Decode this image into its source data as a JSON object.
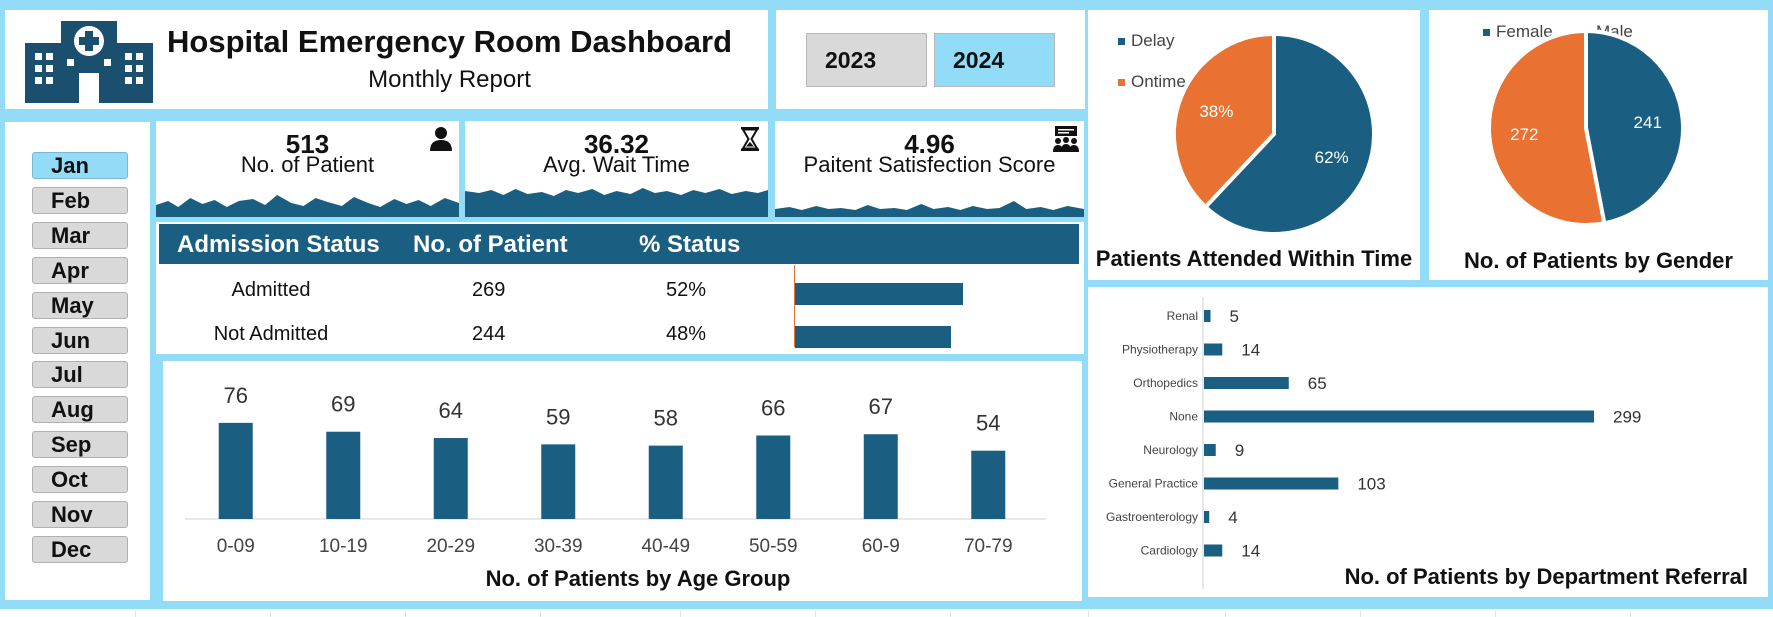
{
  "header": {
    "title": "Hospital Emergency Room Dashboard",
    "subtitle": "Monthly Report",
    "logo_icon": "hospital-icon"
  },
  "years": [
    {
      "label": "2023",
      "selected": false
    },
    {
      "label": "2024",
      "selected": true
    }
  ],
  "months": [
    {
      "label": "Jan",
      "selected": true
    },
    {
      "label": "Feb",
      "selected": false
    },
    {
      "label": "Mar",
      "selected": false
    },
    {
      "label": "Apr",
      "selected": false
    },
    {
      "label": "May",
      "selected": false
    },
    {
      "label": "Jun",
      "selected": false
    },
    {
      "label": "Jul",
      "selected": false
    },
    {
      "label": "Aug",
      "selected": false
    },
    {
      "label": "Sep",
      "selected": false
    },
    {
      "label": "Oct",
      "selected": false
    },
    {
      "label": "Nov",
      "selected": false
    },
    {
      "label": "Dec",
      "selected": false
    }
  ],
  "kpis": [
    {
      "value": "513",
      "label": "No. of Patient",
      "icon": "person-icon"
    },
    {
      "value": "36.32",
      "label": "Avg. Wait Time",
      "icon": "hourglass-icon"
    },
    {
      "value": "4.96",
      "label": "Paitent Satisfection Score",
      "icon": "group-presentation-icon"
    }
  ],
  "colors": {
    "primary": "#1a5f82",
    "accent": "#e97132",
    "frame": "#92dcf7",
    "selected": "#92dcf7",
    "unselected": "#d9d9d9"
  },
  "chart_data": [
    {
      "type": "table",
      "columns": [
        "Admission Status",
        "No. of Patient",
        "% Status"
      ],
      "rows": [
        {
          "status": "Admitted",
          "count": 269,
          "pct_label": "52%",
          "pct": 52
        },
        {
          "status": "Not Admitted",
          "count": 244,
          "pct_label": "48%",
          "pct": 48
        }
      ]
    },
    {
      "type": "bar",
      "title": "No. of Patients by Age Group",
      "categories": [
        "0-09",
        "10-19",
        "20-29",
        "30-39",
        "40-49",
        "50-59",
        "60-9",
        "70-79"
      ],
      "values": [
        76,
        69,
        64,
        59,
        58,
        66,
        67,
        54
      ],
      "ylim": [
        0,
        100
      ],
      "color": "#1a5f82"
    },
    {
      "type": "pie",
      "title": "Patients Attended Within Time",
      "legend_position": "top-left",
      "slices": [
        {
          "name": "Delay",
          "value": 62,
          "label": "62%",
          "color": "#1a5f82"
        },
        {
          "name": "Ontime",
          "value": 38,
          "label": "38%",
          "color": "#e97132"
        }
      ]
    },
    {
      "type": "pie",
      "title": "No. of Patients by Gender",
      "legend_position": "top",
      "slices": [
        {
          "name": "Female",
          "value": 241,
          "label": "241",
          "color": "#1a5f82"
        },
        {
          "name": "Male",
          "value": 272,
          "label": "272",
          "color": "#e97132"
        }
      ]
    },
    {
      "type": "bar",
      "orientation": "horizontal",
      "title": "No. of Patients by Department Referral",
      "categories": [
        "Renal",
        "Physiotherapy",
        "Orthopedics",
        "None",
        "Neurology",
        "General Practice",
        "Gastroenterology",
        "Cardiology"
      ],
      "values": [
        5,
        14,
        65,
        299,
        9,
        103,
        4,
        14
      ],
      "xlim": [
        0,
        400
      ],
      "color": "#1a5f82"
    }
  ]
}
